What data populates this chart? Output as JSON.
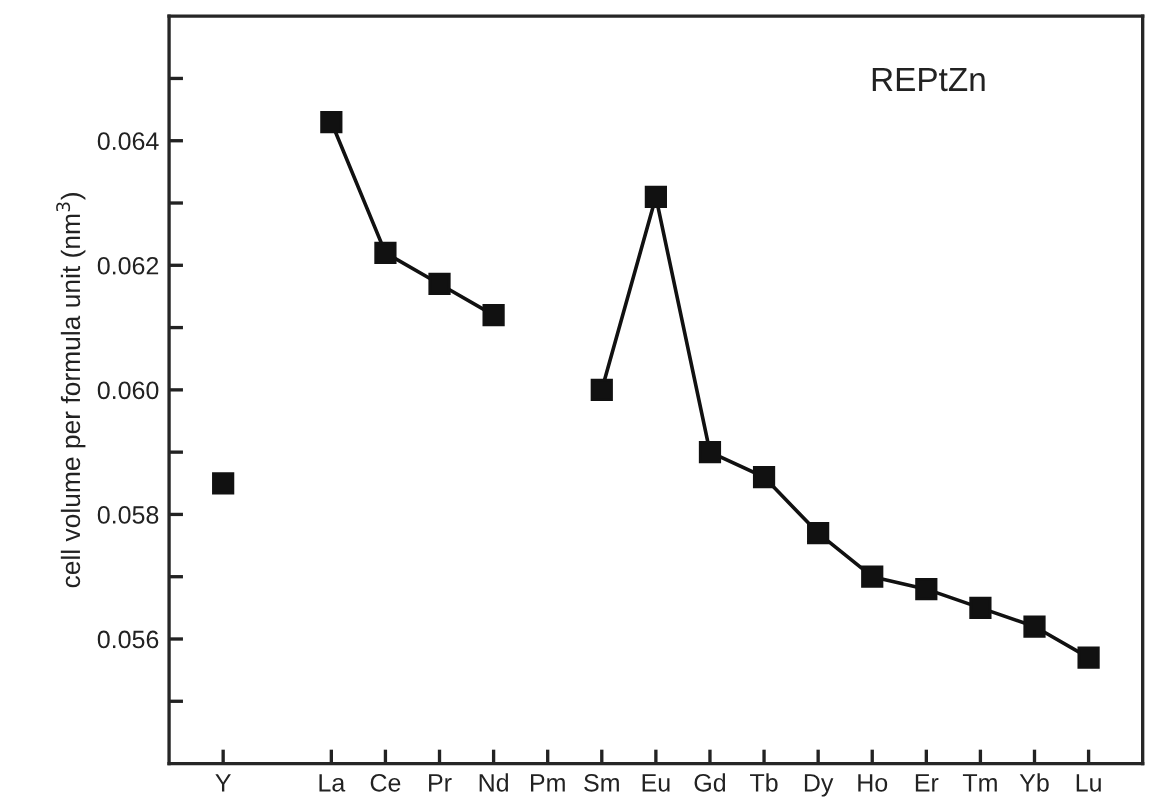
{
  "chart_data": {
    "type": "line",
    "ylabel": "cell volume per formula unit (nm$^{3}$)",
    "annotations": [
      "REPtZn"
    ],
    "categories": [
      "Y",
      null,
      "La",
      "Ce",
      "Pr",
      "Nd",
      "Pm",
      "Sm",
      "Eu",
      "Gd",
      "Tb",
      "Dy",
      "Ho",
      "Er",
      "Tm",
      "Yb",
      "Lu"
    ],
    "series": [
      {
        "color": "#111111",
        "values": [
          0.0585,
          null,
          0.0643,
          0.0622,
          0.0617,
          0.0612,
          null,
          0.06,
          0.0631,
          0.059,
          0.0586,
          0.0577,
          0.057,
          0.0568,
          0.0565,
          0.0562,
          0.0557
        ]
      }
    ],
    "ylim": [
      0.054,
      0.066
    ],
    "yticks": [
      {
        "value": 0.055,
        "label": null
      },
      {
        "value": 0.056,
        "label": "0.056"
      },
      {
        "value": 0.057,
        "label": null
      },
      {
        "value": 0.058,
        "label": "0.058"
      },
      {
        "value": 0.059,
        "label": null
      },
      {
        "value": 0.06,
        "label": "0.060"
      },
      {
        "value": 0.061,
        "label": null
      },
      {
        "value": 0.062,
        "label": "0.062"
      },
      {
        "value": 0.063,
        "label": null
      },
      {
        "value": 0.064,
        "label": "0.064"
      },
      {
        "value": 0.065,
        "label": null
      }
    ],
    "marker": "square",
    "line_style": "solid",
    "grid": false,
    "legend": false
  }
}
